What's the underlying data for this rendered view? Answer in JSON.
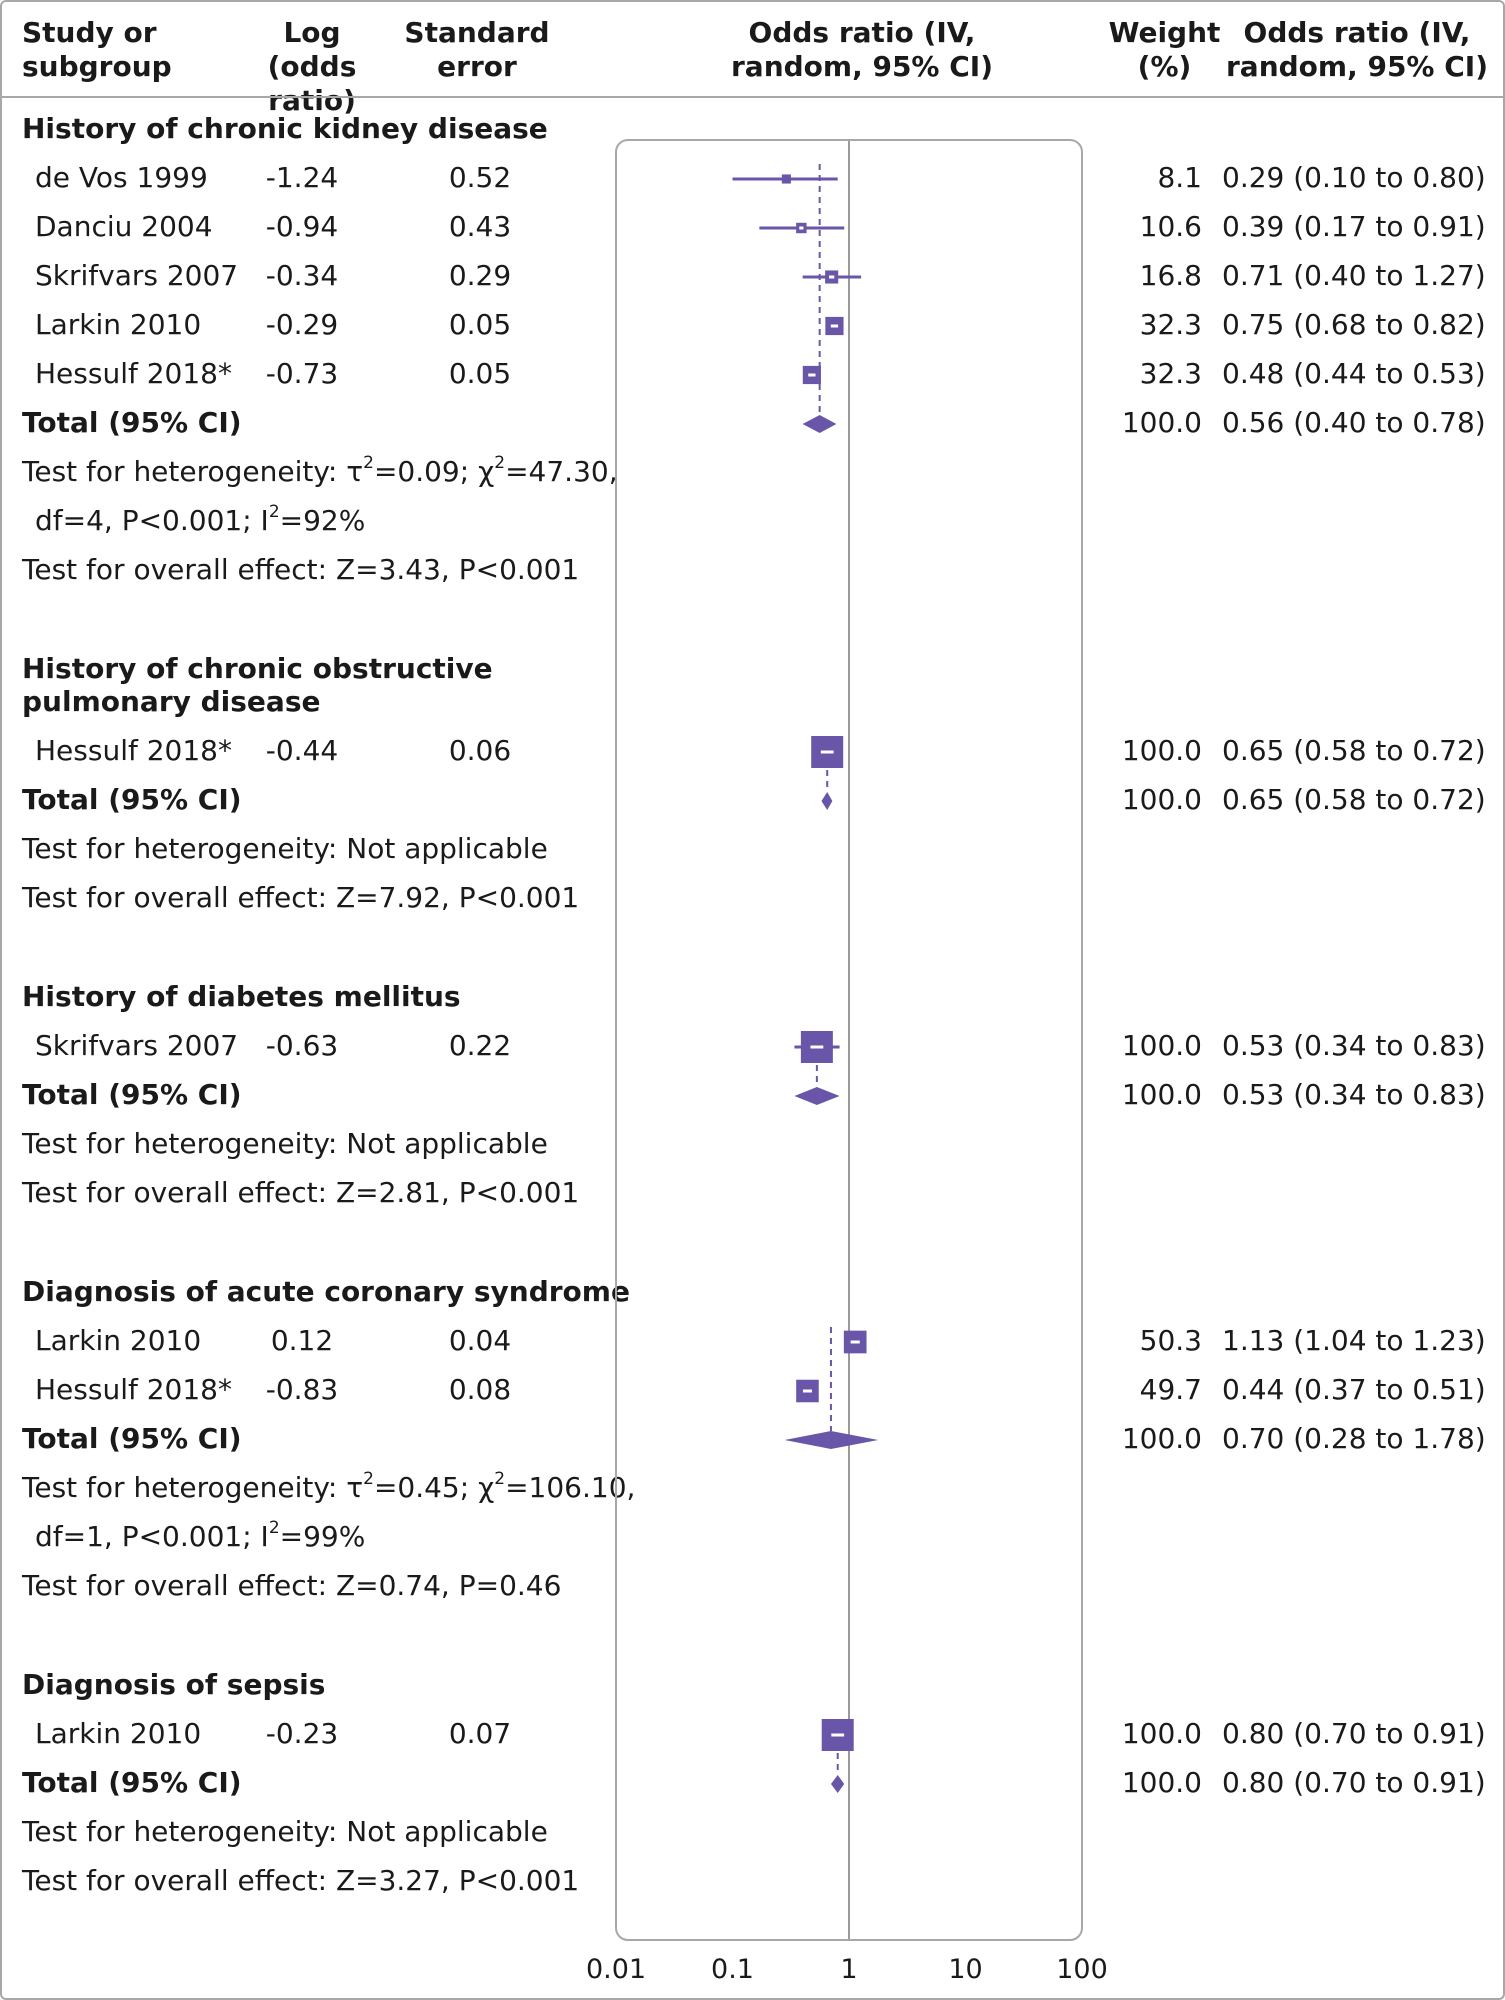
{
  "headers": {
    "study": [
      "Study or",
      "subgroup"
    ],
    "log_or": [
      "Log",
      "(odds ratio)"
    ],
    "se": [
      "Standard",
      "error"
    ],
    "plot": [
      "Odds ratio (IV,",
      "random, 95% CI)"
    ],
    "weight": [
      "Weight",
      "(%)"
    ],
    "or_ci": [
      "Odds ratio (IV,",
      "random, 95% CI)"
    ]
  },
  "colors": {
    "marker": "#6a56a8",
    "frame": "#a8a8a8",
    "null_line": "#9a9a9a"
  },
  "chart_data": {
    "type": "forest",
    "x_scale": "log",
    "xlim": [
      0.01,
      100
    ],
    "null_value": 1,
    "x_ticks": [
      "0.01",
      "0.1",
      "1",
      "10",
      "100"
    ],
    "subgroups": [
      {
        "title": [
          "History of chronic kidney disease"
        ],
        "studies": [
          {
            "name": "de Vos 1999",
            "log_or": "-1.24",
            "se": "0.52",
            "weight": "8.1",
            "or_ci": "0.29 (0.10 to 0.80)",
            "or": 0.29,
            "lo": 0.1,
            "hi": 0.8
          },
          {
            "name": "Danciu 2004",
            "log_or": "-0.94",
            "se": "0.43",
            "weight": "10.6",
            "or_ci": "0.39 (0.17 to 0.91)",
            "or": 0.39,
            "lo": 0.17,
            "hi": 0.91
          },
          {
            "name": "Skrifvars 2007",
            "log_or": "-0.34",
            "se": "0.29",
            "weight": "16.8",
            "or_ci": "0.71 (0.40 to 1.27)",
            "or": 0.71,
            "lo": 0.4,
            "hi": 1.27
          },
          {
            "name": "Larkin 2010",
            "log_or": "-0.29",
            "se": "0.05",
            "weight": "32.3",
            "or_ci": "0.75 (0.68 to 0.82)",
            "or": 0.75,
            "lo": 0.68,
            "hi": 0.82
          },
          {
            "name": "Hessulf 2018*",
            "log_or": "-0.73",
            "se": "0.05",
            "weight": "32.3",
            "or_ci": "0.48 (0.44 to 0.53)",
            "or": 0.48,
            "lo": 0.44,
            "hi": 0.53
          }
        ],
        "total": {
          "label": "Total (95% CI)",
          "weight": "100.0",
          "or_ci": "0.56 (0.40 to 0.78)",
          "or": 0.56,
          "lo": 0.4,
          "hi": 0.78
        },
        "het_lines": [
          "Test for heterogeneity: τ²=0.09; χ²=47.30,",
          "df=4, P<0.001; I²=92%"
        ],
        "overall": "Test for overall effect: Z=3.43, P<0.001"
      },
      {
        "title": [
          "History of chronic obstructive",
          "pulmonary disease"
        ],
        "studies": [
          {
            "name": "Hessulf 2018*",
            "log_or": "-0.44",
            "se": "0.06",
            "weight": "100.0",
            "or_ci": "0.65 (0.58 to 0.72)",
            "or": 0.65,
            "lo": 0.58,
            "hi": 0.72
          }
        ],
        "total": {
          "label": "Total (95% CI)",
          "weight": "100.0",
          "or_ci": "0.65 (0.58 to 0.72)",
          "or": 0.65,
          "lo": 0.58,
          "hi": 0.72
        },
        "het_lines": [
          "Test for heterogeneity: Not applicable"
        ],
        "overall": "Test for overall effect: Z=7.92, P<0.001"
      },
      {
        "title": [
          "History of diabetes mellitus"
        ],
        "studies": [
          {
            "name": "Skrifvars 2007",
            "log_or": "-0.63",
            "se": "0.22",
            "weight": "100.0",
            "or_ci": "0.53 (0.34 to 0.83)",
            "or": 0.53,
            "lo": 0.34,
            "hi": 0.83
          }
        ],
        "total": {
          "label": "Total (95% CI)",
          "weight": "100.0",
          "or_ci": "0.53 (0.34 to 0.83)",
          "or": 0.53,
          "lo": 0.34,
          "hi": 0.83
        },
        "het_lines": [
          "Test for heterogeneity: Not applicable"
        ],
        "overall": "Test for overall effect: Z=2.81, P<0.001"
      },
      {
        "title": [
          "Diagnosis of acute coronary syndrome"
        ],
        "studies": [
          {
            "name": "Larkin 2010",
            "log_or": "0.12",
            "se": "0.04",
            "weight": "50.3",
            "or_ci": "1.13 (1.04 to 1.23)",
            "or": 1.13,
            "lo": 1.04,
            "hi": 1.23
          },
          {
            "name": "Hessulf 2018*",
            "log_or": "-0.83",
            "se": "0.08",
            "weight": "49.7",
            "or_ci": "0.44 (0.37 to 0.51)",
            "or": 0.44,
            "lo": 0.37,
            "hi": 0.51
          }
        ],
        "total": {
          "label": "Total (95% CI)",
          "weight": "100.0",
          "or_ci": "0.70 (0.28 to 1.78)",
          "or": 0.7,
          "lo": 0.28,
          "hi": 1.78
        },
        "het_lines": [
          "Test for heterogeneity: τ²=0.45; χ²=106.10,",
          "df=1, P<0.001; I²=99%"
        ],
        "overall": "Test for overall effect: Z=0.74, P=0.46"
      },
      {
        "title": [
          "Diagnosis of sepsis"
        ],
        "studies": [
          {
            "name": "Larkin 2010",
            "log_or": "-0.23",
            "se": "0.07",
            "weight": "100.0",
            "or_ci": "0.80 (0.70 to 0.91)",
            "or": 0.8,
            "lo": 0.7,
            "hi": 0.91
          }
        ],
        "total": {
          "label": "Total (95% CI)",
          "weight": "100.0",
          "or_ci": "0.80 (0.70 to 0.91)",
          "or": 0.8,
          "lo": 0.7,
          "hi": 0.91
        },
        "het_lines": [
          "Test for heterogeneity: Not applicable"
        ],
        "overall": "Test for overall effect: Z=3.27, P<0.001"
      }
    ]
  }
}
